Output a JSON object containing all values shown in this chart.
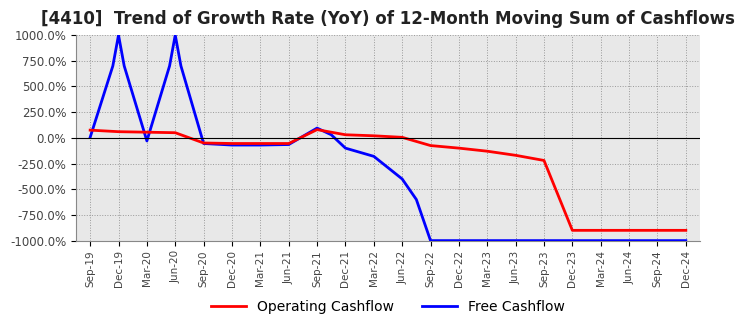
{
  "title": "[4410]  Trend of Growth Rate (YoY) of 12-Month Moving Sum of Cashflows",
  "title_fontsize": 12,
  "background_color": "#ffffff",
  "plot_bg_color": "#e8e8e8",
  "grid_color": "#999999",
  "ylim": [
    -1000,
    1000
  ],
  "yticks": [
    -1000,
    -750,
    -500,
    -250,
    0,
    250,
    500,
    750,
    1000
  ],
  "ytick_labels": [
    "-1000.0%",
    "-750.0%",
    "-500.0%",
    "-250.0%",
    "0.0%",
    "250.0%",
    "500.0%",
    "750.0%",
    "1000.0%"
  ],
  "x_tick_labels": [
    "Sep-19",
    "Dec-19",
    "Mar-20",
    "Jun-20",
    "Sep-20",
    "Dec-20",
    "Mar-21",
    "Jun-21",
    "Sep-21",
    "Dec-21",
    "Mar-22",
    "Jun-22",
    "Sep-22",
    "Dec-22",
    "Mar-23",
    "Jun-23",
    "Sep-23",
    "Dec-23",
    "Mar-24",
    "Jun-24",
    "Sep-24",
    "Dec-24"
  ],
  "operating_cashflow": [
    75,
    60,
    55,
    50,
    -50,
    -55,
    -55,
    -55,
    80,
    30,
    20,
    5,
    -75,
    -100,
    -130,
    -170,
    -220,
    -900,
    -900,
    -900,
    -900,
    -900
  ],
  "free_cashflow_x": [
    0,
    0.8,
    1.0,
    1.2,
    2.0,
    2.8,
    3.0,
    3.2,
    4.0,
    5.0,
    6.0,
    7.0,
    8.0,
    8.5,
    9.0,
    10.0,
    11.0,
    11.5,
    12.0,
    13.0,
    14.0,
    15.0,
    16.0,
    17.0,
    18.0,
    19.0,
    20.0,
    21.0
  ],
  "free_cashflow_y": [
    5,
    700,
    1000,
    700,
    -30,
    700,
    1000,
    700,
    -55,
    -70,
    -70,
    -65,
    95,
    30,
    -100,
    -180,
    -400,
    -600,
    -1000,
    -1000,
    -1000,
    -1000,
    -1000,
    -1000,
    -1000,
    -1000,
    -1000,
    -1000
  ],
  "operating_color": "#ff0000",
  "free_color": "#0000ff",
  "line_width": 2.0,
  "legend_labels": [
    "Operating Cashflow",
    "Free Cashflow"
  ]
}
